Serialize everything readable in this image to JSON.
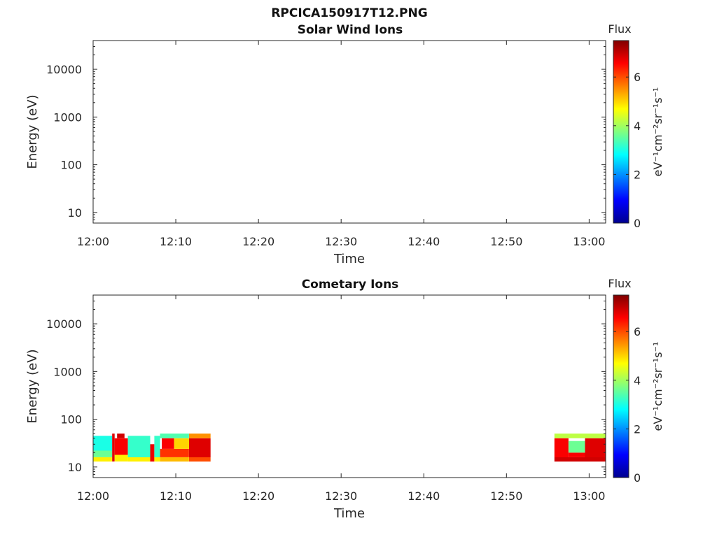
{
  "figure_title": "RPCICA150917T12.PNG",
  "colormap": [
    "#00008f",
    "#0000ff",
    "#0080ff",
    "#00ffff",
    "#80ff80",
    "#ffff00",
    "#ff8000",
    "#ff0000",
    "#800000"
  ],
  "chart_data": [
    {
      "type": "heatmap",
      "title": "Solar Wind Ions",
      "xlabel": "Time",
      "ylabel": "Energy (eV)",
      "x_ticks": [
        "12:00",
        "12:10",
        "12:20",
        "12:30",
        "12:40",
        "12:50",
        "13:00"
      ],
      "y_ticks": [
        "10",
        "100",
        "1000",
        "10000"
      ],
      "y_scale": "log",
      "xlim_minutes": [
        0,
        62
      ],
      "ylim": [
        6,
        40000
      ],
      "colorbar": {
        "title": "Flux",
        "label": "eV⁻¹cm⁻²sr⁻¹s⁻¹",
        "ticks": [
          "0",
          "2",
          "4",
          "6"
        ],
        "range": [
          0,
          7.5
        ]
      },
      "blocks": []
    },
    {
      "type": "heatmap",
      "title": "Cometary Ions",
      "xlabel": "Time",
      "ylabel": "Energy (eV)",
      "x_ticks": [
        "12:00",
        "12:10",
        "12:20",
        "12:30",
        "12:40",
        "12:50",
        "13:00"
      ],
      "y_ticks": [
        "10",
        "100",
        "1000",
        "10000"
      ],
      "y_scale": "log",
      "xlim_minutes": [
        0,
        62
      ],
      "ylim": [
        6,
        40000
      ],
      "colorbar": {
        "title": "Flux",
        "label": "eV⁻¹cm⁻²sr⁻¹s⁻¹",
        "ticks": [
          "0",
          "2",
          "4",
          "6"
        ],
        "range": [
          0,
          7.5
        ]
      },
      "blocks": [
        {
          "t0": 0.0,
          "t1": 2.3,
          "e0": 13,
          "e1": 16,
          "flux": 4.8
        },
        {
          "t0": 0.0,
          "t1": 2.3,
          "e0": 16,
          "e1": 22,
          "flux": 3.6
        },
        {
          "t0": 0.0,
          "t1": 2.3,
          "e0": 22,
          "e1": 45,
          "flux": 3.0
        },
        {
          "t0": 2.3,
          "t1": 2.6,
          "e0": 13,
          "e1": 50,
          "flux": 6.8
        },
        {
          "t0": 2.6,
          "t1": 4.2,
          "e0": 13,
          "e1": 18,
          "flux": 4.8
        },
        {
          "t0": 2.6,
          "t1": 4.2,
          "e0": 18,
          "e1": 40,
          "flux": 6.6
        },
        {
          "t0": 2.9,
          "t1": 3.8,
          "e0": 40,
          "e1": 50,
          "flux": 6.9
        },
        {
          "t0": 4.2,
          "t1": 6.9,
          "e0": 13,
          "e1": 16,
          "flux": 4.8
        },
        {
          "t0": 4.2,
          "t1": 6.9,
          "e0": 16,
          "e1": 45,
          "flux": 3.2
        },
        {
          "t0": 6.9,
          "t1": 7.4,
          "e0": 13,
          "e1": 30,
          "flux": 6.7
        },
        {
          "t0": 7.4,
          "t1": 8.1,
          "e0": 13,
          "e1": 16,
          "flux": 4.8
        },
        {
          "t0": 7.4,
          "t1": 8.1,
          "e0": 16,
          "e1": 45,
          "flux": 3.2
        },
        {
          "t0": 8.1,
          "t1": 11.6,
          "e0": 13,
          "e1": 16,
          "flux": 5.2
        },
        {
          "t0": 8.1,
          "t1": 11.6,
          "e0": 16,
          "e1": 24,
          "flux": 6.2
        },
        {
          "t0": 8.3,
          "t1": 9.8,
          "e0": 24,
          "e1": 40,
          "flux": 6.6
        },
        {
          "t0": 9.8,
          "t1": 11.6,
          "e0": 24,
          "e1": 40,
          "flux": 5.0
        },
        {
          "t0": 8.1,
          "t1": 11.6,
          "e0": 40,
          "e1": 50,
          "flux": 3.4
        },
        {
          "t0": 11.6,
          "t1": 14.2,
          "e0": 13,
          "e1": 16,
          "flux": 6.0
        },
        {
          "t0": 11.6,
          "t1": 14.2,
          "e0": 16,
          "e1": 40,
          "flux": 6.8
        },
        {
          "t0": 11.6,
          "t1": 14.2,
          "e0": 40,
          "e1": 50,
          "flux": 5.5
        },
        {
          "t0": 55.8,
          "t1": 62.0,
          "e0": 13,
          "e1": 16,
          "flux": 6.9
        },
        {
          "t0": 55.8,
          "t1": 57.5,
          "e0": 16,
          "e1": 40,
          "flux": 6.6
        },
        {
          "t0": 57.5,
          "t1": 59.5,
          "e0": 16,
          "e1": 20,
          "flux": 6.6
        },
        {
          "t0": 57.5,
          "t1": 59.5,
          "e0": 20,
          "e1": 35,
          "flux": 3.6
        },
        {
          "t0": 59.5,
          "t1": 62.0,
          "e0": 16,
          "e1": 40,
          "flux": 6.8
        },
        {
          "t0": 55.8,
          "t1": 62.0,
          "e0": 40,
          "e1": 50,
          "flux": 4.2
        }
      ]
    }
  ]
}
